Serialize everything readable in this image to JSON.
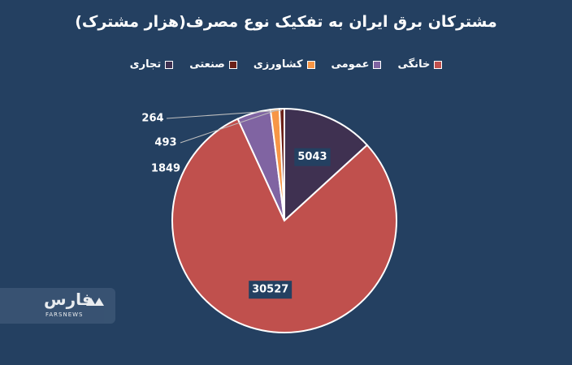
{
  "chart_data": {
    "type": "pie",
    "title": "مشترکان برق ایران  به تفکیک نوع مصرف(هزار مشترک)",
    "legend_position": "top",
    "categories": [
      "خانگی",
      "عمومی",
      "کشاورزی",
      "صنعتی",
      "تجاری"
    ],
    "values": [
      30527,
      1849,
      493,
      264,
      5043
    ],
    "colors": [
      "#c0504d",
      "#8064a2",
      "#f79646",
      "#6b2118",
      "#3f3151"
    ],
    "data_labels": [
      "30527",
      "1849",
      "493",
      "264",
      "5043"
    ]
  },
  "watermark": {
    "logo_text": "فارس",
    "logo_sub": "FARSNEWS"
  }
}
